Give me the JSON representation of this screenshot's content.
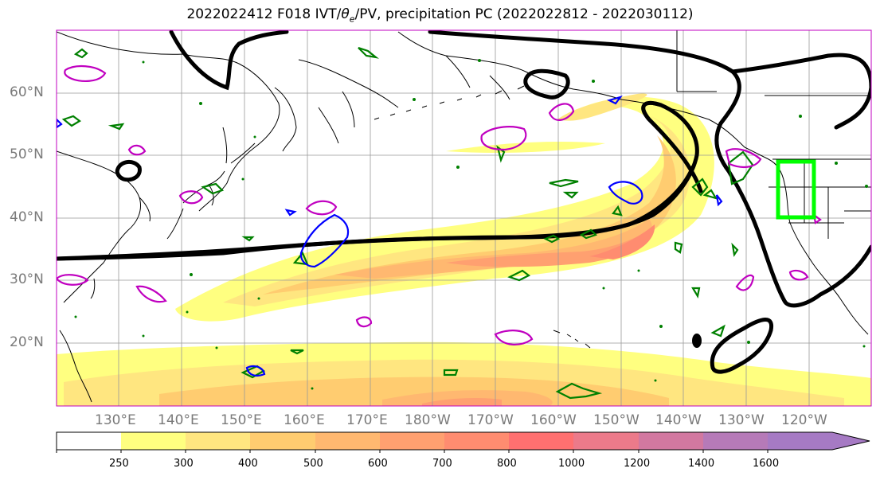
{
  "title": {
    "prefix": "2022022412 F018 IVT/",
    "theta": "θ",
    "subscript": "e",
    "suffix": "/PV, precipitation PC (2022022812 - 2022030112)"
  },
  "map": {
    "lat_labels": [
      "60°N",
      "50°N",
      "40°N",
      "30°N",
      "20°N"
    ],
    "lon_labels": [
      "130°E",
      "140°E",
      "150°E",
      "160°E",
      "170°E",
      "180°W",
      "170°W",
      "160°W",
      "150°W",
      "140°W",
      "130°W",
      "120°W"
    ],
    "colors": {
      "ivt_contour": "#000000",
      "theta_e_contour": "#008000",
      "pv_contour_magenta": "#c000c0",
      "pv_contour_blue": "#0000ff",
      "precip_box": "#00ff00",
      "gridline": "#999999"
    }
  },
  "colorbar": {
    "ticks": [
      "250",
      "300",
      "400",
      "500",
      "600",
      "700",
      "800",
      "1000",
      "1200",
      "1400",
      "1600"
    ],
    "fill_colors": [
      "#ffffff",
      "#ffff80",
      "#ffe680",
      "#ffcc70",
      "#ffb870",
      "#ffa070",
      "#ff8c70",
      "#ff7070",
      "#ec7a8a",
      "#d278a0",
      "#b67ab8",
      "#a67ac4"
    ]
  }
}
